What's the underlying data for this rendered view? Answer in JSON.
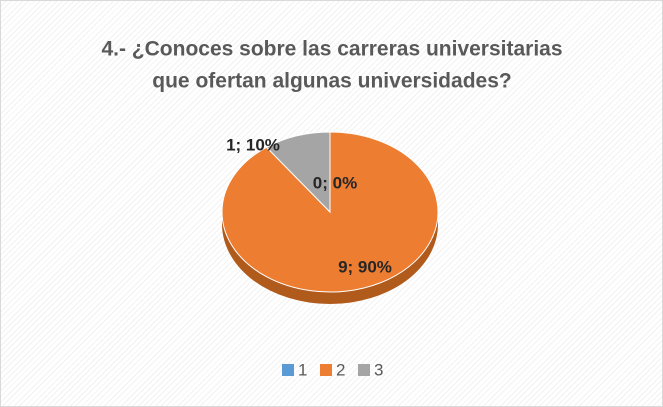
{
  "chart_data": {
    "type": "pie",
    "title": [
      "4.- ¿Conoces sobre las carreras universitarias",
      "que ofertan algunas universidades?"
    ],
    "categories": [
      "1",
      "2",
      "3"
    ],
    "values": [
      0,
      9,
      1
    ],
    "value_labels": [
      "0; 0%",
      "9; 90%",
      "1; 10%"
    ],
    "colors": [
      "#5b9bd5",
      "#ed7d31",
      "#a5a5a5"
    ],
    "legend": "bottom"
  }
}
